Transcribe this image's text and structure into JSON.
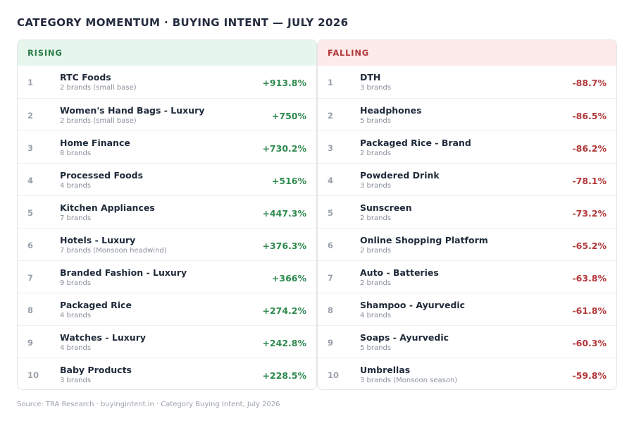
{
  "title": "CATEGORY MOMENTUM · BUYING INTENT — JULY 2026",
  "source": "Source: TRA Research · buyingintent.in · Category Buying Intent, July 2026",
  "chart_data": {
    "type": "table",
    "rising": {
      "header": "RISING",
      "rows": [
        {
          "rank": "1",
          "name": "RTC Foods",
          "sub": "2 brands (small base)",
          "value": "+913.8%"
        },
        {
          "rank": "2",
          "name": "Women's Hand Bags - Luxury",
          "sub": "2 brands (small base)",
          "value": "+750%"
        },
        {
          "rank": "3",
          "name": "Home Finance",
          "sub": "8 brands",
          "value": "+730.2%"
        },
        {
          "rank": "4",
          "name": "Processed Foods",
          "sub": "4 brands",
          "value": "+516%"
        },
        {
          "rank": "5",
          "name": "Kitchen Appliances",
          "sub": "7 brands",
          "value": "+447.3%"
        },
        {
          "rank": "6",
          "name": "Hotels - Luxury",
          "sub": "7 brands (Monsoon headwind)",
          "value": "+376.3%"
        },
        {
          "rank": "7",
          "name": "Branded Fashion - Luxury",
          "sub": "9 brands",
          "value": "+366%"
        },
        {
          "rank": "8",
          "name": "Packaged Rice",
          "sub": "4 brands",
          "value": "+274.2%"
        },
        {
          "rank": "9",
          "name": "Watches - Luxury",
          "sub": "4 brands",
          "value": "+242.8%"
        },
        {
          "rank": "10",
          "name": "Baby Products",
          "sub": "3 brands",
          "value": "+228.5%"
        }
      ]
    },
    "falling": {
      "header": "FALLING",
      "rows": [
        {
          "rank": "1",
          "name": "DTH",
          "sub": "3 brands",
          "value": "-88.7%"
        },
        {
          "rank": "2",
          "name": "Headphones",
          "sub": "5 brands",
          "value": "-86.5%"
        },
        {
          "rank": "3",
          "name": "Packaged Rice - Brand",
          "sub": "2 brands",
          "value": "-86.2%"
        },
        {
          "rank": "4",
          "name": "Powdered Drink",
          "sub": "3 brands",
          "value": "-78.1%"
        },
        {
          "rank": "5",
          "name": "Sunscreen",
          "sub": "2 brands",
          "value": "-73.2%"
        },
        {
          "rank": "6",
          "name": "Online Shopping Platform",
          "sub": "2 brands",
          "value": "-65.2%"
        },
        {
          "rank": "7",
          "name": "Auto - Batteries",
          "sub": "2 brands",
          "value": "-63.8%"
        },
        {
          "rank": "8",
          "name": "Shampoo - Ayurvedic",
          "sub": "4 brands",
          "value": "-61.8%"
        },
        {
          "rank": "9",
          "name": "Soaps - Ayurvedic",
          "sub": "5 brands",
          "value": "-60.3%"
        },
        {
          "rank": "10",
          "name": "Umbrellas",
          "sub": "3 brands (Monsoon season)",
          "value": "-59.8%"
        }
      ]
    }
  },
  "colors": {
    "rising": "#2e8b4f",
    "falling": "#b3383a"
  }
}
